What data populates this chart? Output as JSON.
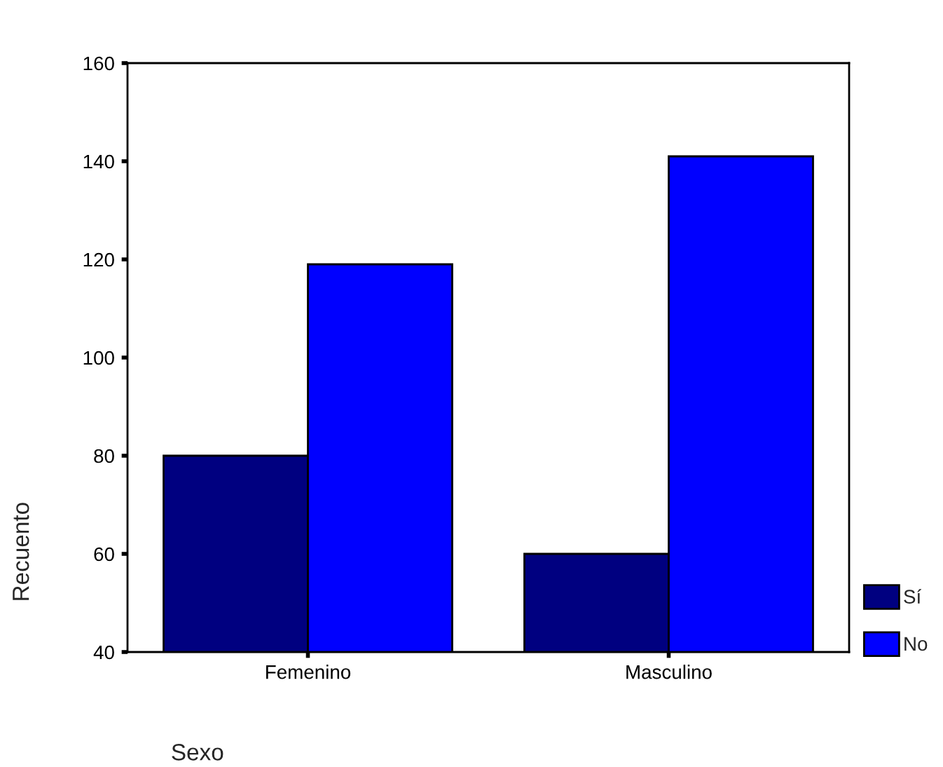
{
  "chart_data": {
    "type": "bar",
    "xlabel": "Sexo",
    "ylabel": "Recuento",
    "categories": [
      "Femenino",
      "Masculino"
    ],
    "series": [
      {
        "name": "Sí",
        "color": "#000080",
        "values": [
          80,
          60
        ]
      },
      {
        "name": "No",
        "color": "#0000ff",
        "values": [
          119,
          141
        ]
      }
    ],
    "ylim": [
      40,
      160
    ],
    "yticks": [
      40,
      60,
      80,
      100,
      120,
      140,
      160
    ],
    "grid": false,
    "legend": "bottom right"
  }
}
